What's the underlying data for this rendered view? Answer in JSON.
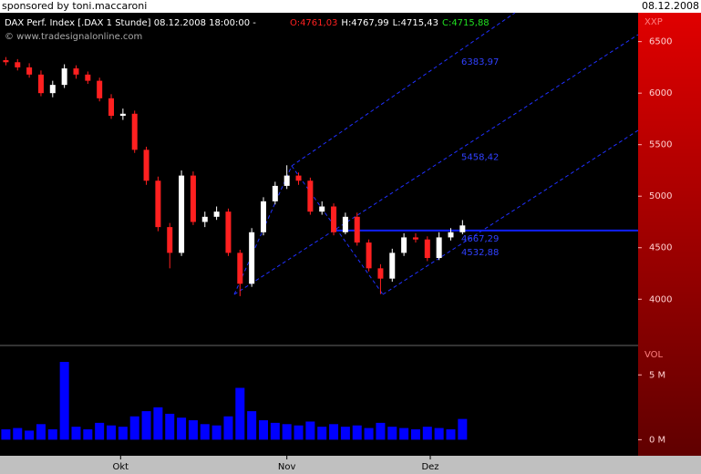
{
  "header": {
    "sponsor": "sponsored by toni.maccaroni",
    "date": "08.12.2008"
  },
  "chart_data": {
    "type": "candlestick",
    "title": "DAX Perf. Index [.DAX  1 Stunde] 08.12.2008 18:00:00 -",
    "ohlc_labels": [
      {
        "text": "O:4761,03",
        "color": "#ff2020"
      },
      {
        "text": "H:4767,99",
        "color": "#ffffff"
      },
      {
        "text": "L:4715,43",
        "color": "#ffffff"
      },
      {
        "text": "C:4715,88",
        "color": "#20e020"
      }
    ],
    "watermark": "© www.tradesignalonline.com",
    "y_label": "XXP",
    "x": [
      0,
      1,
      2,
      3,
      4,
      5,
      6,
      7,
      8,
      9,
      10,
      11,
      12,
      13,
      14,
      15,
      16,
      17,
      18,
      19,
      20,
      21,
      22,
      23,
      24,
      25,
      26,
      27,
      28,
      29,
      30,
      31,
      32,
      33,
      34,
      35,
      36,
      37,
      38,
      39
    ],
    "open": [
      6320,
      6300,
      6250,
      6180,
      6000,
      6080,
      6240,
      6180,
      6120,
      5950,
      5780,
      5800,
      5450,
      5150,
      4700,
      4450,
      5200,
      4750,
      4800,
      4850,
      4450,
      4150,
      4650,
      4950,
      5100,
      5200,
      5150,
      4850,
      4900,
      4650,
      4800,
      4550,
      4300,
      4200,
      4450,
      4600,
      4580,
      4400,
      4600,
      4650
    ],
    "high": [
      6350,
      6330,
      6290,
      6220,
      6120,
      6280,
      6270,
      6210,
      6150,
      5990,
      5850,
      5830,
      5480,
      5190,
      4740,
      5250,
      5240,
      4850,
      4900,
      4880,
      4480,
      4690,
      4990,
      5140,
      5300,
      5230,
      5180,
      4950,
      4930,
      4840,
      4840,
      4580,
      4340,
      4490,
      4640,
      4640,
      4610,
      4650,
      4690,
      4768
    ],
    "low": [
      6270,
      6220,
      6150,
      5970,
      5960,
      6050,
      6140,
      6090,
      5920,
      5750,
      5740,
      5420,
      5110,
      4660,
      4300,
      4420,
      4720,
      4700,
      4770,
      4420,
      4030,
      4120,
      4620,
      4920,
      5070,
      5110,
      4820,
      4820,
      4620,
      4630,
      4520,
      4270,
      4050,
      4170,
      4420,
      4550,
      4370,
      4380,
      4570,
      4630
    ],
    "close": [
      6300,
      6250,
      6180,
      6000,
      6080,
      6240,
      6180,
      6120,
      5950,
      5780,
      5800,
      5450,
      5150,
      4700,
      4450,
      5200,
      4750,
      4800,
      4850,
      4450,
      4150,
      4650,
      4950,
      5100,
      5200,
      5150,
      4850,
      4900,
      4650,
      4800,
      4550,
      4300,
      4200,
      4450,
      4600,
      4580,
      4400,
      4600,
      4650,
      4716
    ],
    "up_color": "#ffffff",
    "down_color": "#ff2020",
    "xlim": [
      -0.5,
      54
    ],
    "xticks": [
      {
        "value": 9.8,
        "label": "Okt"
      },
      {
        "value": 24,
        "label": "Nov"
      },
      {
        "value": 36.25,
        "label": "Dez"
      }
    ],
    "ylim": [
      3560,
      6780
    ],
    "yticks": [
      4000,
      4500,
      5000,
      5500,
      6000,
      6500
    ],
    "annotations": [
      {
        "value": 6383.97,
        "label": "6383,97"
      },
      {
        "value": 5458.42,
        "label": "5458,42"
      },
      {
        "value": 4667.29,
        "label": "4667,29",
        "hline": true
      },
      {
        "value": 4532.88,
        "label": "4532,88"
      }
    ],
    "volume": {
      "label": "VOL",
      "color": "#0000ff",
      "values": [
        0.8,
        0.9,
        0.7,
        1.2,
        0.8,
        6.0,
        1.0,
        0.8,
        1.3,
        1.1,
        1.0,
        1.8,
        2.2,
        2.5,
        2.0,
        1.7,
        1.5,
        1.2,
        1.1,
        1.8,
        4.0,
        2.2,
        1.5,
        1.3,
        1.2,
        1.1,
        1.4,
        1.0,
        1.2,
        1.0,
        1.1,
        0.9,
        1.3,
        1.0,
        0.9,
        0.8,
        1.0,
        0.9,
        0.8,
        1.6
      ],
      "ylim": [
        -1.1,
        7.2
      ],
      "yticks": [
        {
          "value": 0,
          "label": "0 M"
        },
        {
          "value": 5,
          "label": "5 M"
        }
      ]
    }
  }
}
